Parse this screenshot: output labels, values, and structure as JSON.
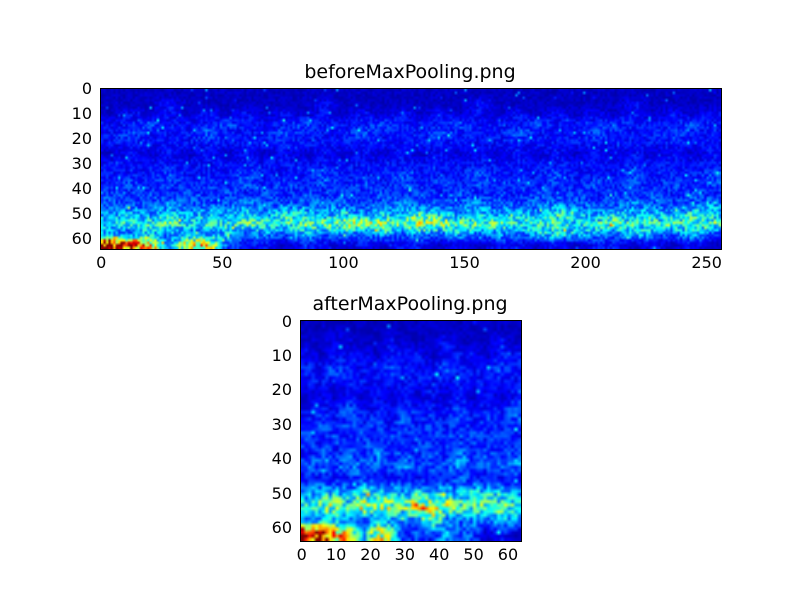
{
  "colors": {
    "figure_background": "#ffffff",
    "axis_line": "#000000",
    "tick_text": "#000000"
  },
  "chart_data": [
    {
      "type": "heatmap",
      "title": "beforeMaxPooling.png",
      "colormap": "jet",
      "x_range": [
        0,
        255
      ],
      "y_range": [
        0,
        63
      ],
      "x_ticks": [
        "0",
        "50",
        "100",
        "150",
        "200",
        "250"
      ],
      "x_tick_values": [
        0,
        50,
        100,
        150,
        200,
        250
      ],
      "y_ticks": [
        "0",
        "10",
        "20",
        "30",
        "40",
        "50",
        "60"
      ],
      "y_tick_values": [
        0,
        10,
        20,
        30,
        40,
        50,
        60
      ],
      "legend": "none",
      "grid": false,
      "description": "Spectrogram-like feature map, dark blue background, faint blue speckle bands rows 12-24 and 32-48, bright cyan horizontal stripe rows 48-56, yellow speckles and red hot-spot at bottom-left rows 58-64 cols 0-45",
      "values_hex": [
        "11111111111111111111111111111111",
        "11121111111211111112111111121111",
        "12121212121212121212121212121212",
        "22322232223222322232223222322232",
        "23222322232223222322232223222322",
        "22222222222222222222222222222222",
        "12121212121212121212121212121212",
        "22222222222222222222222222222222",
        "22232223222322232223222322232223",
        "23232323232323232323232323232323",
        "32323232323232323232323232323232",
        "33343334333433343334333433343334",
        "45454545465454546545454654545465",
        "56675667667788879877766656766766",
        "43534353435343534353435654354353",
        "fda49a32212212122121221212212121"
      ]
    },
    {
      "type": "heatmap",
      "title": "afterMaxPooling.png",
      "colormap": "jet",
      "x_range": [
        0,
        63
      ],
      "y_range": [
        0,
        63
      ],
      "x_ticks": [
        "0",
        "10",
        "20",
        "30",
        "40",
        "50",
        "60"
      ],
      "x_tick_values": [
        0,
        10,
        20,
        30,
        40,
        50,
        60
      ],
      "y_ticks": [
        "0",
        "10",
        "20",
        "30",
        "40",
        "50",
        "60"
      ],
      "y_tick_values": [
        0,
        10,
        20,
        30,
        40,
        50,
        60
      ],
      "legend": "none",
      "grid": false,
      "description": "Max-pooled 64x64 feature map, dark blue background, speckled blue mid bands, bright cyan stripe with yellow segments rows 50-56, red/orange hot-spot bottom-left rows 60-64 cols 0-16",
      "values_hex": [
        "1111111111111111",
        "1121112111211121",
        "2122212221222122",
        "2232223222322232",
        "2222222222222222",
        "1212121212121212",
        "2223222322232223",
        "2323232323232323",
        "3232323232323232",
        "2323242323242323",
        "3334333433343334",
        "2222322222232222",
        "4554655465546554",
        "67869787a8876776",
        "3454354348434354",
        "feba497232533121"
      ]
    }
  ]
}
